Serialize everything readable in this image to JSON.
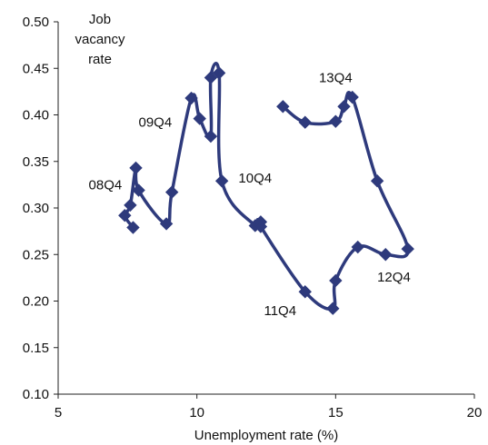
{
  "chart_data": {
    "type": "scatter",
    "xlabel": "Unemployment rate (%)",
    "ylabel_lines": [
      "Job",
      "vacancy",
      "rate"
    ],
    "xlim": [
      5,
      20
    ],
    "ylim": [
      0.1,
      0.5
    ],
    "x_ticks": [
      "5",
      "10",
      "15",
      "20"
    ],
    "y_ticks": [
      "0.10",
      "0.15",
      "0.20",
      "0.25",
      "0.30",
      "0.35",
      "0.40",
      "0.45",
      "0.50"
    ],
    "grid": false,
    "series_color": "#2E3A7C",
    "points": [
      [
        7.7,
        0.279
      ],
      [
        7.4,
        0.292
      ],
      [
        7.6,
        0.303
      ],
      [
        7.8,
        0.343
      ],
      [
        7.9,
        0.319
      ],
      [
        8.9,
        0.283
      ],
      [
        9.1,
        0.317
      ],
      [
        9.8,
        0.418
      ],
      [
        10.1,
        0.396
      ],
      [
        10.5,
        0.377
      ],
      [
        10.5,
        0.44
      ],
      [
        10.8,
        0.445
      ],
      [
        10.9,
        0.329
      ],
      [
        12.1,
        0.281
      ],
      [
        12.3,
        0.285
      ],
      [
        12.3,
        0.28
      ],
      [
        13.9,
        0.21
      ],
      [
        14.9,
        0.192
      ],
      [
        15.0,
        0.222
      ],
      [
        15.8,
        0.258
      ],
      [
        16.8,
        0.25
      ],
      [
        17.6,
        0.256
      ],
      [
        16.5,
        0.329
      ],
      [
        15.6,
        0.419
      ],
      [
        15.3,
        0.409
      ],
      [
        15.0,
        0.393
      ],
      [
        13.9,
        0.392
      ],
      [
        13.1,
        0.409
      ]
    ],
    "annotations": [
      {
        "text": "08Q4",
        "x": 6.7,
        "y": 0.325
      },
      {
        "text": "09Q4",
        "x": 8.5,
        "y": 0.392
      },
      {
        "text": "10Q4",
        "x": 12.1,
        "y": 0.332
      },
      {
        "text": "11Q4",
        "x": 13.0,
        "y": 0.19
      },
      {
        "text": "12Q4",
        "x": 17.1,
        "y": 0.226
      },
      {
        "text": "13Q4",
        "x": 15.0,
        "y": 0.44
      }
    ]
  }
}
